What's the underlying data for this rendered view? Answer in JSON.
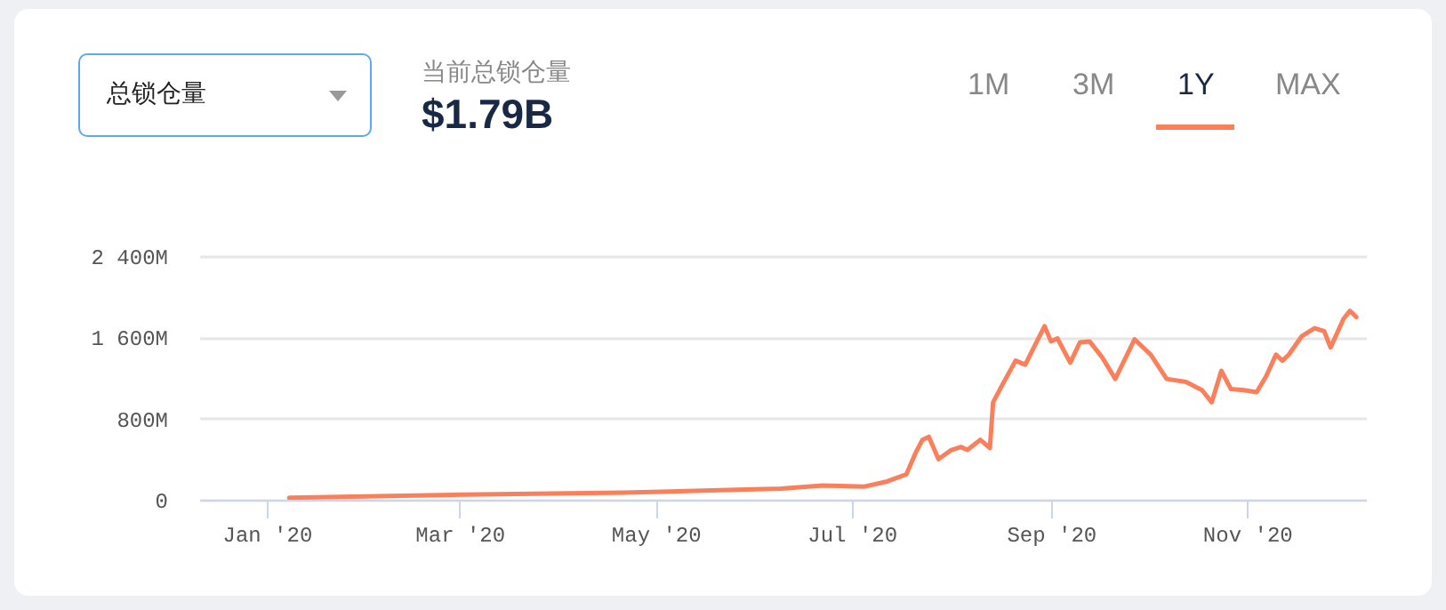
{
  "chart_data": {
    "type": "line",
    "annotations": [
      "总锁仓量",
      "当前总锁仓量",
      "$1.79B",
      "1M",
      "3M",
      "1Y",
      "MAX"
    ],
    "x": [
      "2020-01-08",
      "2020-03-02",
      "2020-04-21",
      "2020-05-29",
      "2020-06-09",
      "2020-06-22",
      "2020-07-05",
      "2020-07-12",
      "2020-07-18",
      "2020-07-21",
      "2020-07-23",
      "2020-07-25",
      "2020-07-28",
      "2020-08-01",
      "2020-08-04",
      "2020-08-06",
      "2020-08-10",
      "2020-08-13",
      "2020-08-14",
      "2020-08-17",
      "2020-08-21",
      "2020-08-24",
      "2020-08-27",
      "2020-08-30",
      "2020-09-01",
      "2020-09-03",
      "2020-09-07",
      "2020-09-10",
      "2020-09-13",
      "2020-09-17",
      "2020-09-21",
      "2020-09-27",
      "2020-10-02",
      "2020-10-07",
      "2020-10-13",
      "2020-10-18",
      "2020-10-21",
      "2020-10-24",
      "2020-10-27",
      "2020-10-31",
      "2020-11-04",
      "2020-11-07",
      "2020-11-10",
      "2020-11-12",
      "2020-11-14",
      "2020-11-18",
      "2020-11-22",
      "2020-11-25",
      "2020-11-27",
      "2020-12-01",
      "2020-12-03",
      "2020-12-05"
    ],
    "series": [
      {
        "color": "#fa7f5a",
        "values": [
          20,
          50,
          70,
          100,
          110,
          140,
          130,
          180,
          250,
          470,
          590,
          620,
          400,
          490,
          520,
          490,
          590,
          510,
          960,
          1140,
          1370,
          1330,
          1520,
          1710,
          1560,
          1590,
          1350,
          1550,
          1560,
          1400,
          1190,
          1580,
          1430,
          1190,
          1160,
          1080,
          960,
          1270,
          1090,
          1080,
          1060,
          1220,
          1430,
          1370,
          1430,
          1610,
          1690,
          1660,
          1500,
          1780,
          1860,
          1800
        ]
      }
    ],
    "xlim": [
      "2019-12-11",
      "2020-12-08"
    ],
    "xticks": [
      {
        "value": "2020-01-01",
        "label": "Jan '20"
      },
      {
        "value": "2020-03-01",
        "label": "Mar '20"
      },
      {
        "value": "2020-05-01",
        "label": "May '20"
      },
      {
        "value": "2020-07-01",
        "label": "Jul '20"
      },
      {
        "value": "2020-09-01",
        "label": "Sep '20"
      },
      {
        "value": "2020-11-01",
        "label": "Nov '20"
      }
    ],
    "ylim": [
      0,
      2400
    ],
    "yticks": [
      0,
      {
        "value": 800,
        "label": "800M"
      },
      {
        "value": 1600,
        "label": "1 600M"
      },
      {
        "value": 2400,
        "label": "2 400M"
      }
    ],
    "grid": "y",
    "legend": false,
    "marker": "none",
    "line_style": "solid"
  }
}
